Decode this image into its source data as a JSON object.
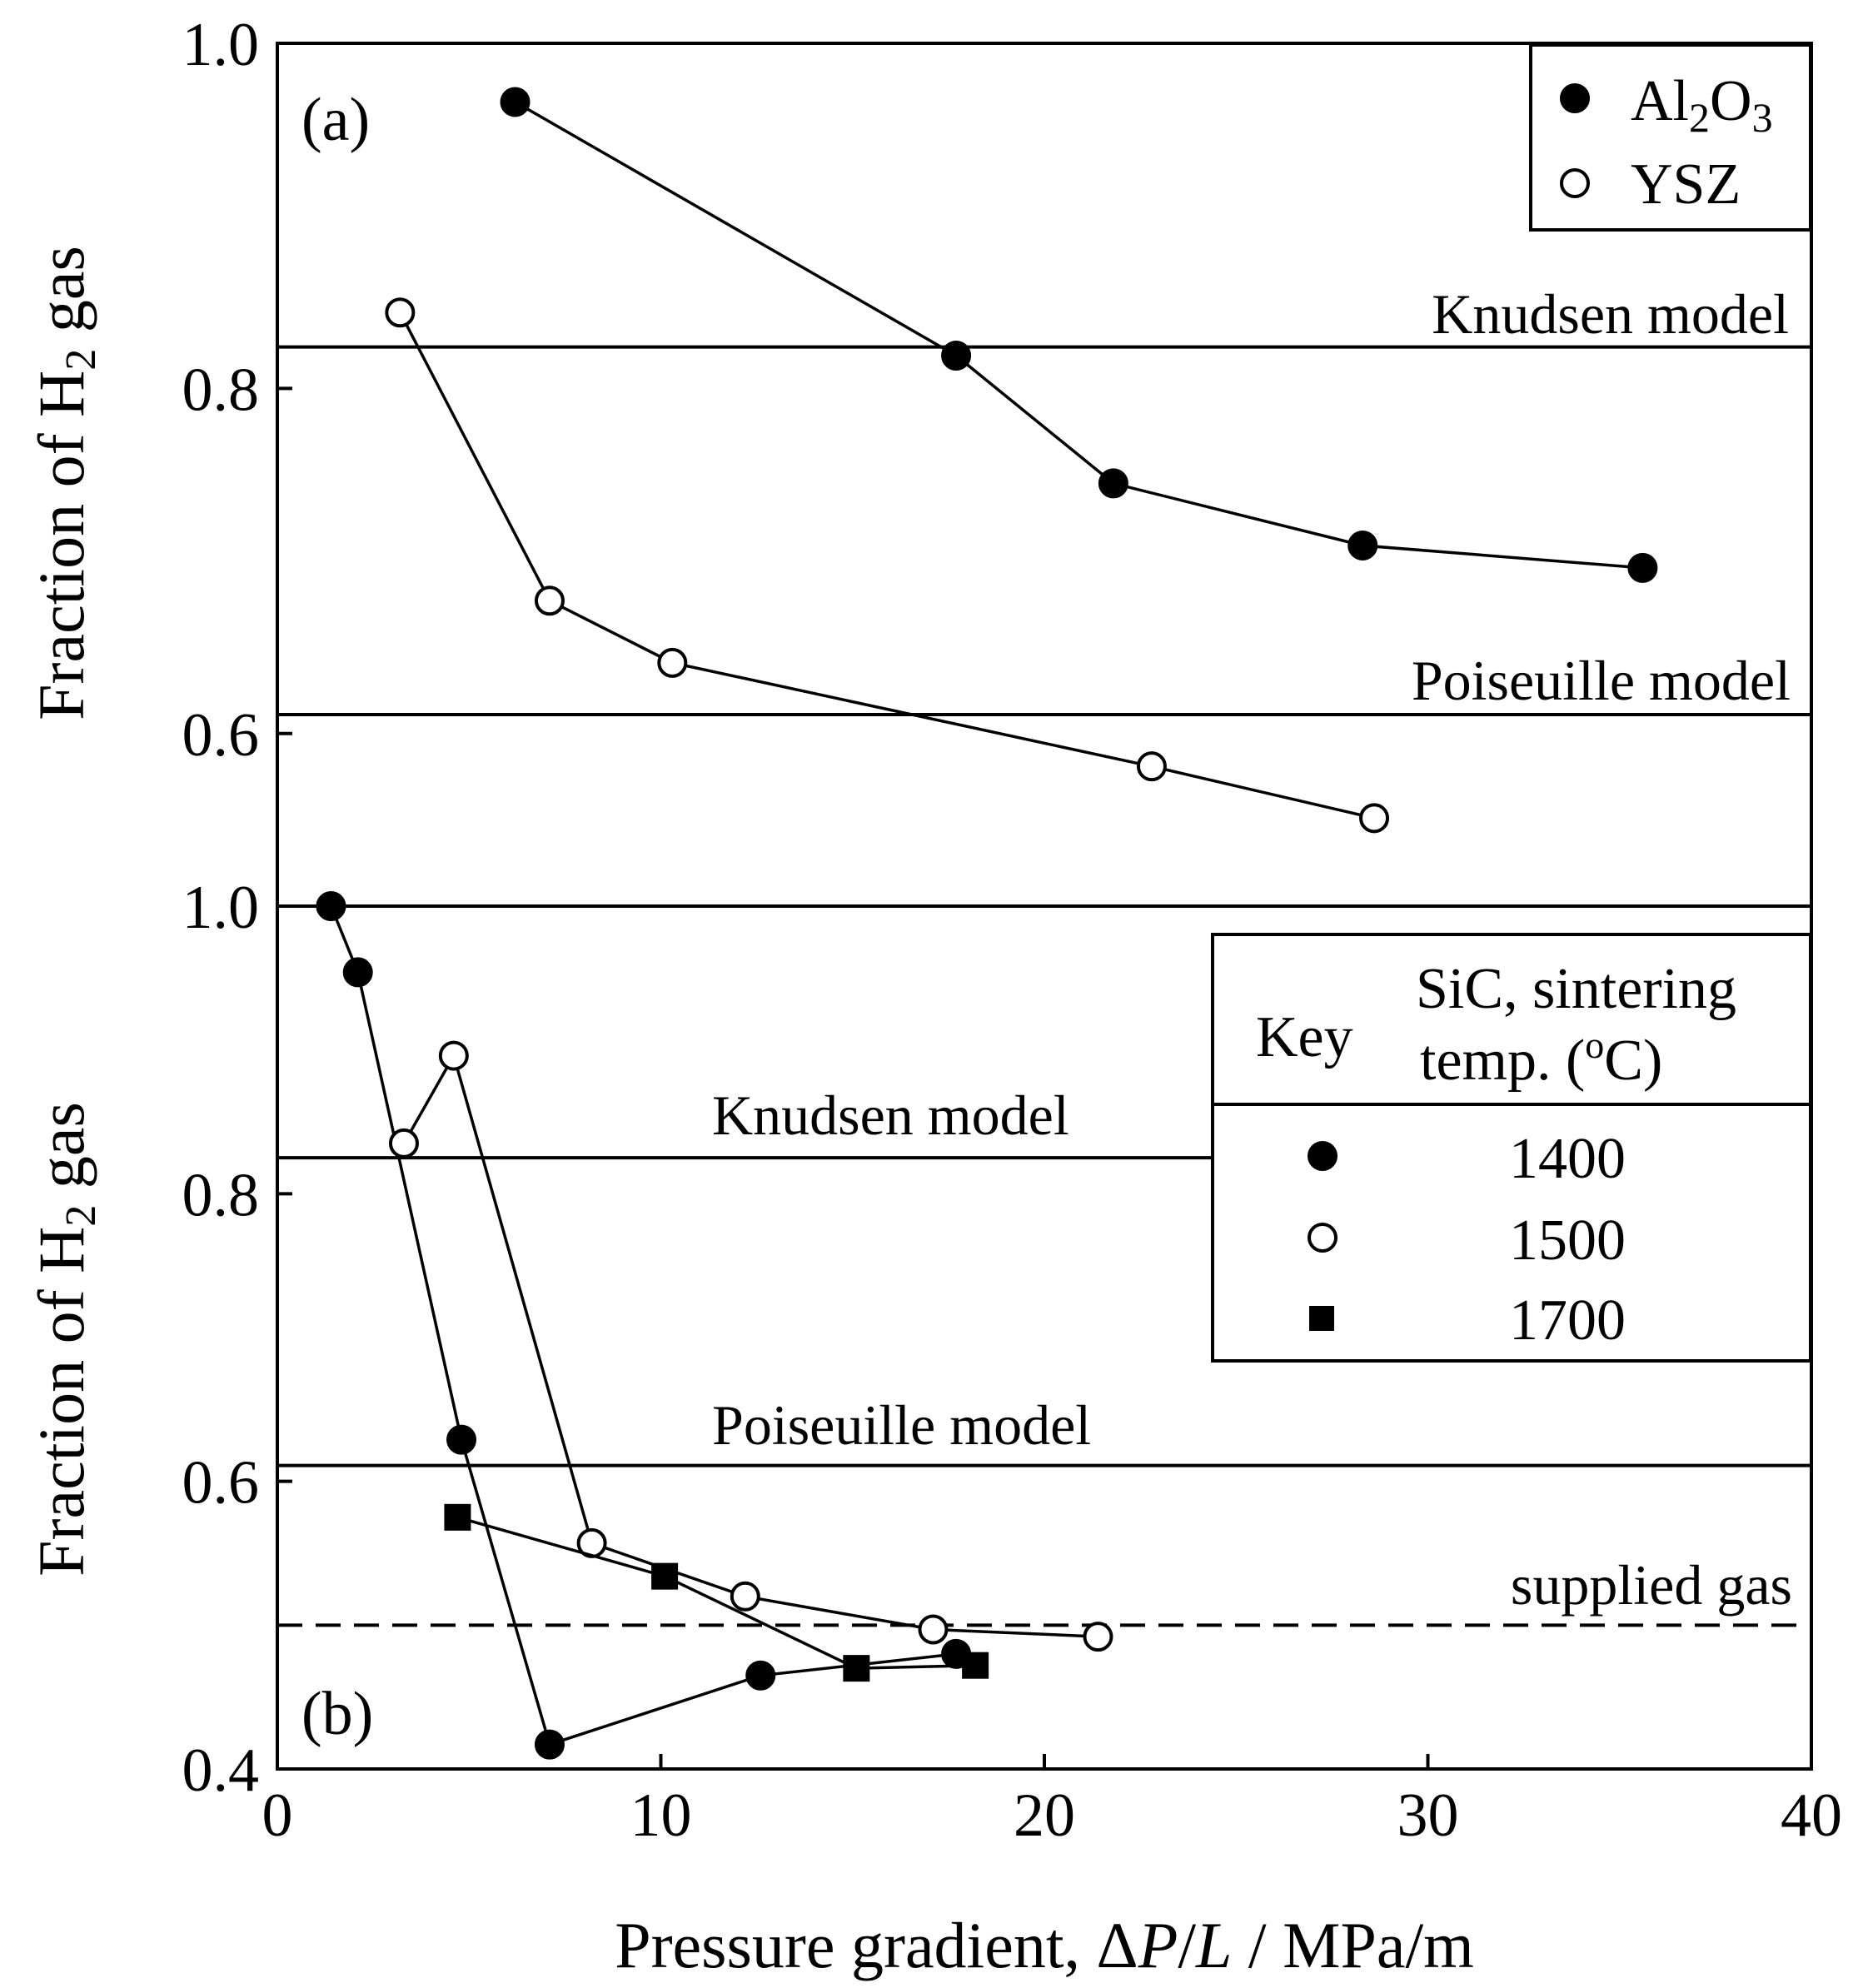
{
  "figure": {
    "x_axis_title_prefix": "Pressure gradient, ",
    "x_axis_title_delta": "Δ",
    "x_axis_title_P": "P",
    "x_axis_title_slash": "/",
    "x_axis_title_L": "L",
    "x_axis_title_units": " / MPa/m",
    "y_axis_title_prefix": "Fraction of H",
    "y_axis_title_sub": "2",
    "y_axis_title_suffix": " gas"
  },
  "chart_data": [
    {
      "panel": "(a)",
      "type": "line",
      "xlim": [
        0,
        40
      ],
      "ylim": [
        0.5,
        1.0
      ],
      "x_ticks": [
        0,
        10,
        20,
        30,
        40
      ],
      "x_tick_labels": [
        "0",
        "10",
        "20",
        "30",
        "40"
      ],
      "y_ticks": [
        1.0,
        0.8,
        0.6
      ],
      "y_tick_labels": [
        "1.0",
        "0.8",
        "0.6"
      ],
      "xlabel": "Pressure gradient, ΔP/L / MPa/m",
      "ylabel": "Fraction of H2 gas",
      "series": [
        {
          "name": "Al2O3",
          "legend_main": "Al",
          "legend_sub1": "2",
          "legend_mid": "O",
          "legend_sub2": "3",
          "marker": "filled-circle",
          "x": [
            6.2,
            17.7,
            21.8,
            28.3,
            35.6
          ],
          "y": [
            0.966,
            0.819,
            0.745,
            0.709,
            0.696
          ]
        },
        {
          "name": "YSZ",
          "legend_label": "YSZ",
          "marker": "open-circle",
          "x": [
            3.2,
            7.1,
            10.3,
            22.8,
            28.6
          ],
          "y": [
            0.844,
            0.677,
            0.641,
            0.581,
            0.551
          ]
        }
      ],
      "reference_lines": [
        {
          "label": "Knudsen model",
          "y": 0.824,
          "style": "solid"
        },
        {
          "label": "Poiseuille model",
          "y": 0.611,
          "style": "solid"
        }
      ],
      "legend_position": "top-right"
    },
    {
      "panel": "(b)",
      "type": "line",
      "xlim": [
        0,
        40
      ],
      "ylim": [
        0.4,
        1.0
      ],
      "x_ticks": [
        0,
        10,
        20,
        30,
        40
      ],
      "x_tick_labels": [
        "0",
        "10",
        "20",
        "30",
        "40"
      ],
      "y_ticks": [
        1.0,
        0.8,
        0.6,
        0.4
      ],
      "y_tick_labels": [
        "1.0",
        "0.8",
        "0.6",
        "0.4"
      ],
      "xlabel": "Pressure gradient, ΔP/L / MPa/m",
      "ylabel": "Fraction of H2 gas",
      "series": [
        {
          "name": "1400",
          "marker": "filled-circle",
          "x": [
            1.4,
            2.1,
            4.8,
            7.1,
            12.6,
            17.7
          ],
          "y": [
            1.0,
            0.954,
            0.629,
            0.417,
            0.465,
            0.48
          ]
        },
        {
          "name": "1500",
          "marker": "open-circle",
          "x": [
            3.3,
            4.6,
            8.2,
            12.2,
            17.1,
            21.4
          ],
          "y": [
            0.835,
            0.896,
            0.557,
            0.52,
            0.497,
            0.492
          ]
        },
        {
          "name": "1700",
          "marker": "filled-square",
          "x": [
            4.7,
            10.1,
            15.1,
            18.2
          ],
          "y": [
            0.575,
            0.534,
            0.47,
            0.472
          ]
        }
      ],
      "reference_lines": [
        {
          "label": "Knudsen model",
          "y": 0.825,
          "style": "solid"
        },
        {
          "label": "Poiseuille model",
          "y": 0.611,
          "style": "solid"
        },
        {
          "label": "supplied gas",
          "y": 0.5,
          "style": "dashed"
        }
      ],
      "legend_position": "top-right",
      "legend": {
        "key_label": "Key",
        "header_line1": "SiC, sintering",
        "header_line2_prefix": "temp. (",
        "header_line2_sup": "o",
        "header_line2_suffix": "C)"
      }
    }
  ]
}
